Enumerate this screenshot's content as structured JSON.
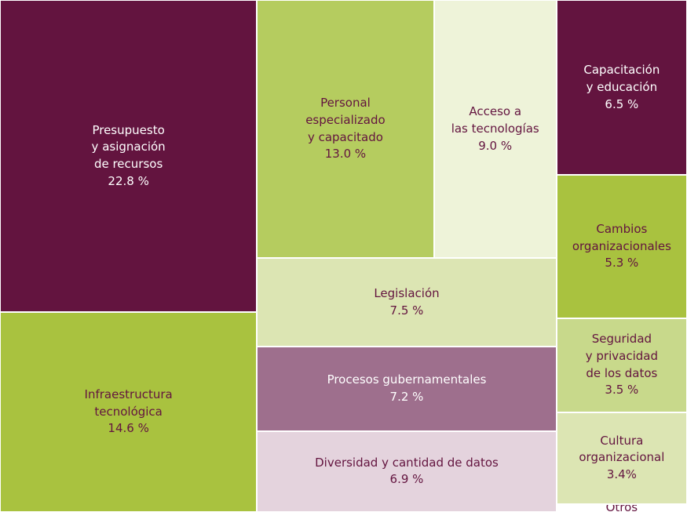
{
  "chart_data": {
    "type": "treemap",
    "categories": [
      "Presupuesto\ny asignación\nde recursos",
      "Infraestructura\ntecnológica",
      "Personal\nespecializado\ny capacitado",
      "Acceso a\nlas tecnologías",
      "Legislación",
      "Procesos gubernamentales",
      "Diversidad y cantidad de datos",
      "Capacitación\ny educación",
      "Cambios\norganizacionales",
      "Seguridad\ny privacidad\nde los datos",
      "Cultura\norganizacional",
      "Otros"
    ],
    "values": [
      22.8,
      14.6,
      13.0,
      9.0,
      7.5,
      7.2,
      6.9,
      6.5,
      5.3,
      3.5,
      3.4,
      0.3
    ],
    "value_labels": [
      "22.8 %",
      "14.6 %",
      "13.0 %",
      "9.0 %",
      "7.5 %",
      "7.2 %",
      "6.9 %",
      "6.5 %",
      "5.3 %",
      "3.5 %",
      "3.4%",
      null
    ],
    "colors": [
      "#63143f",
      "#a9c23f",
      "#b5cc5f",
      "#eef3d9",
      "#dce5b3",
      "#9e6f8d",
      "#e4d3dd",
      "#63143f",
      "#a9c23f",
      "#c8d98b",
      "#dce5b3",
      "#ffffff"
    ],
    "label_colors": [
      "#ffffff",
      "#63143f",
      "#63143f",
      "#63143f",
      "#63143f",
      "#ffffff",
      "#63143f",
      "#ffffff",
      "#63143f",
      "#63143f",
      "#63143f",
      "#63143f"
    ]
  }
}
